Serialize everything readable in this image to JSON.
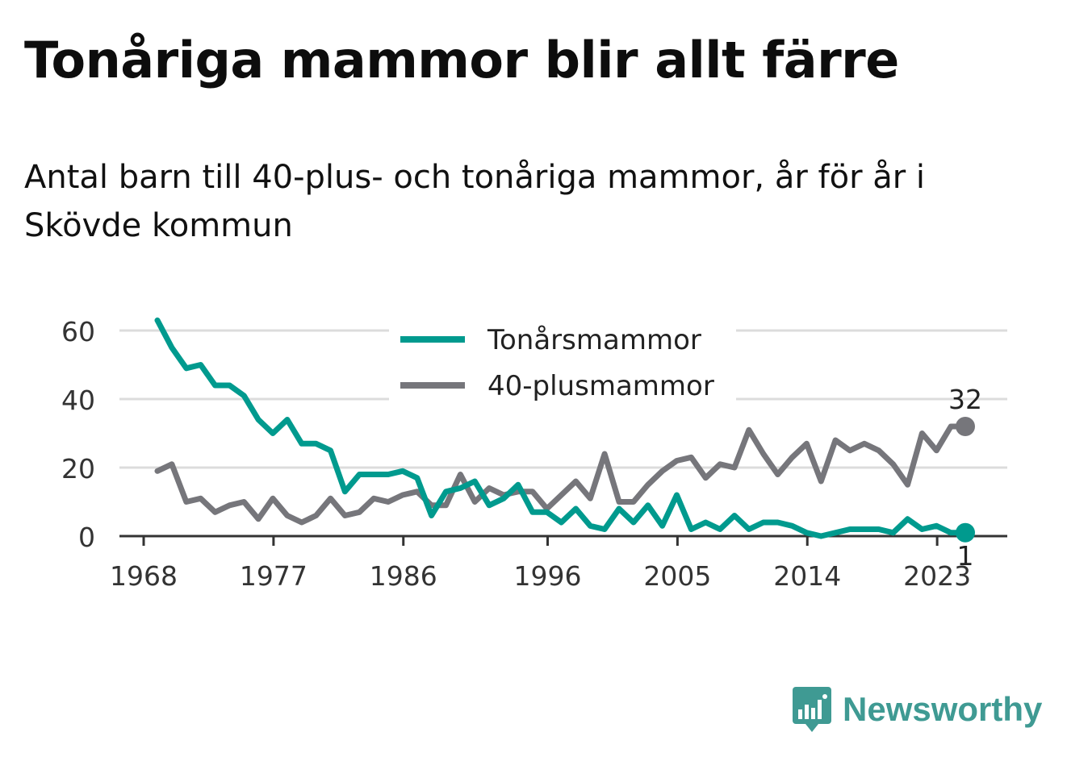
{
  "title": "Tonåriga mammor blir allt färre",
  "subtitle": "Antal barn till 40-plus- och tonåriga mammor, år för år i Skövde kommun",
  "brand": {
    "name": "Newsworthy",
    "color": "#3f9a93",
    "icon": "bar-chart-bubble-icon"
  },
  "chart_data": {
    "type": "line",
    "x": [
      1968,
      1969,
      1970,
      1971,
      1972,
      1973,
      1974,
      1975,
      1976,
      1977,
      1978,
      1979,
      1980,
      1981,
      1982,
      1983,
      1984,
      1985,
      1986,
      1987,
      1988,
      1989,
      1990,
      1991,
      1992,
      1993,
      1994,
      1995,
      1996,
      1997,
      1998,
      1999,
      2000,
      2001,
      2002,
      2003,
      2004,
      2005,
      2006,
      2007,
      2008,
      2009,
      2010,
      2011,
      2012,
      2013,
      2014,
      2015,
      2016,
      2017,
      2018,
      2019,
      2020,
      2021,
      2022,
      2023,
      2024
    ],
    "series": [
      {
        "name": "Tonårsmammor",
        "color": "#009a8e",
        "values": [
          63,
          55,
          49,
          50,
          44,
          44,
          41,
          34,
          30,
          34,
          27,
          27,
          25,
          13,
          18,
          18,
          18,
          19,
          17,
          6,
          13,
          14,
          16,
          9,
          11,
          15,
          7,
          7,
          4,
          8,
          3,
          2,
          8,
          4,
          9,
          3,
          12,
          2,
          4,
          2,
          6,
          2,
          4,
          4,
          3,
          1,
          0,
          1,
          2,
          2,
          2,
          1,
          5,
          2,
          3,
          1,
          1
        ]
      },
      {
        "name": "40-plusmammor",
        "color": "#76767b",
        "values": [
          19,
          21,
          10,
          11,
          7,
          9,
          10,
          5,
          11,
          6,
          4,
          6,
          11,
          6,
          7,
          11,
          10,
          12,
          13,
          9,
          9,
          18,
          10,
          14,
          12,
          13,
          13,
          8,
          12,
          16,
          11,
          24,
          10,
          10,
          15,
          19,
          22,
          23,
          17,
          21,
          20,
          31,
          24,
          18,
          23,
          27,
          16,
          28,
          25,
          27,
          25,
          21,
          15,
          30,
          25,
          32,
          32
        ]
      }
    ],
    "xticks": [
      "1968",
      "1977",
      "1986",
      "1996",
      "2005",
      "2014",
      "2023"
    ],
    "yticks": [
      0,
      20,
      40,
      60
    ],
    "ylim": [
      0,
      65
    ],
    "xlim": [
      1968,
      2024
    ],
    "grid": true,
    "legend": "top-center",
    "end_labels": {
      "40-plusmammor": "32",
      "Tonårsmammor": "1"
    }
  }
}
